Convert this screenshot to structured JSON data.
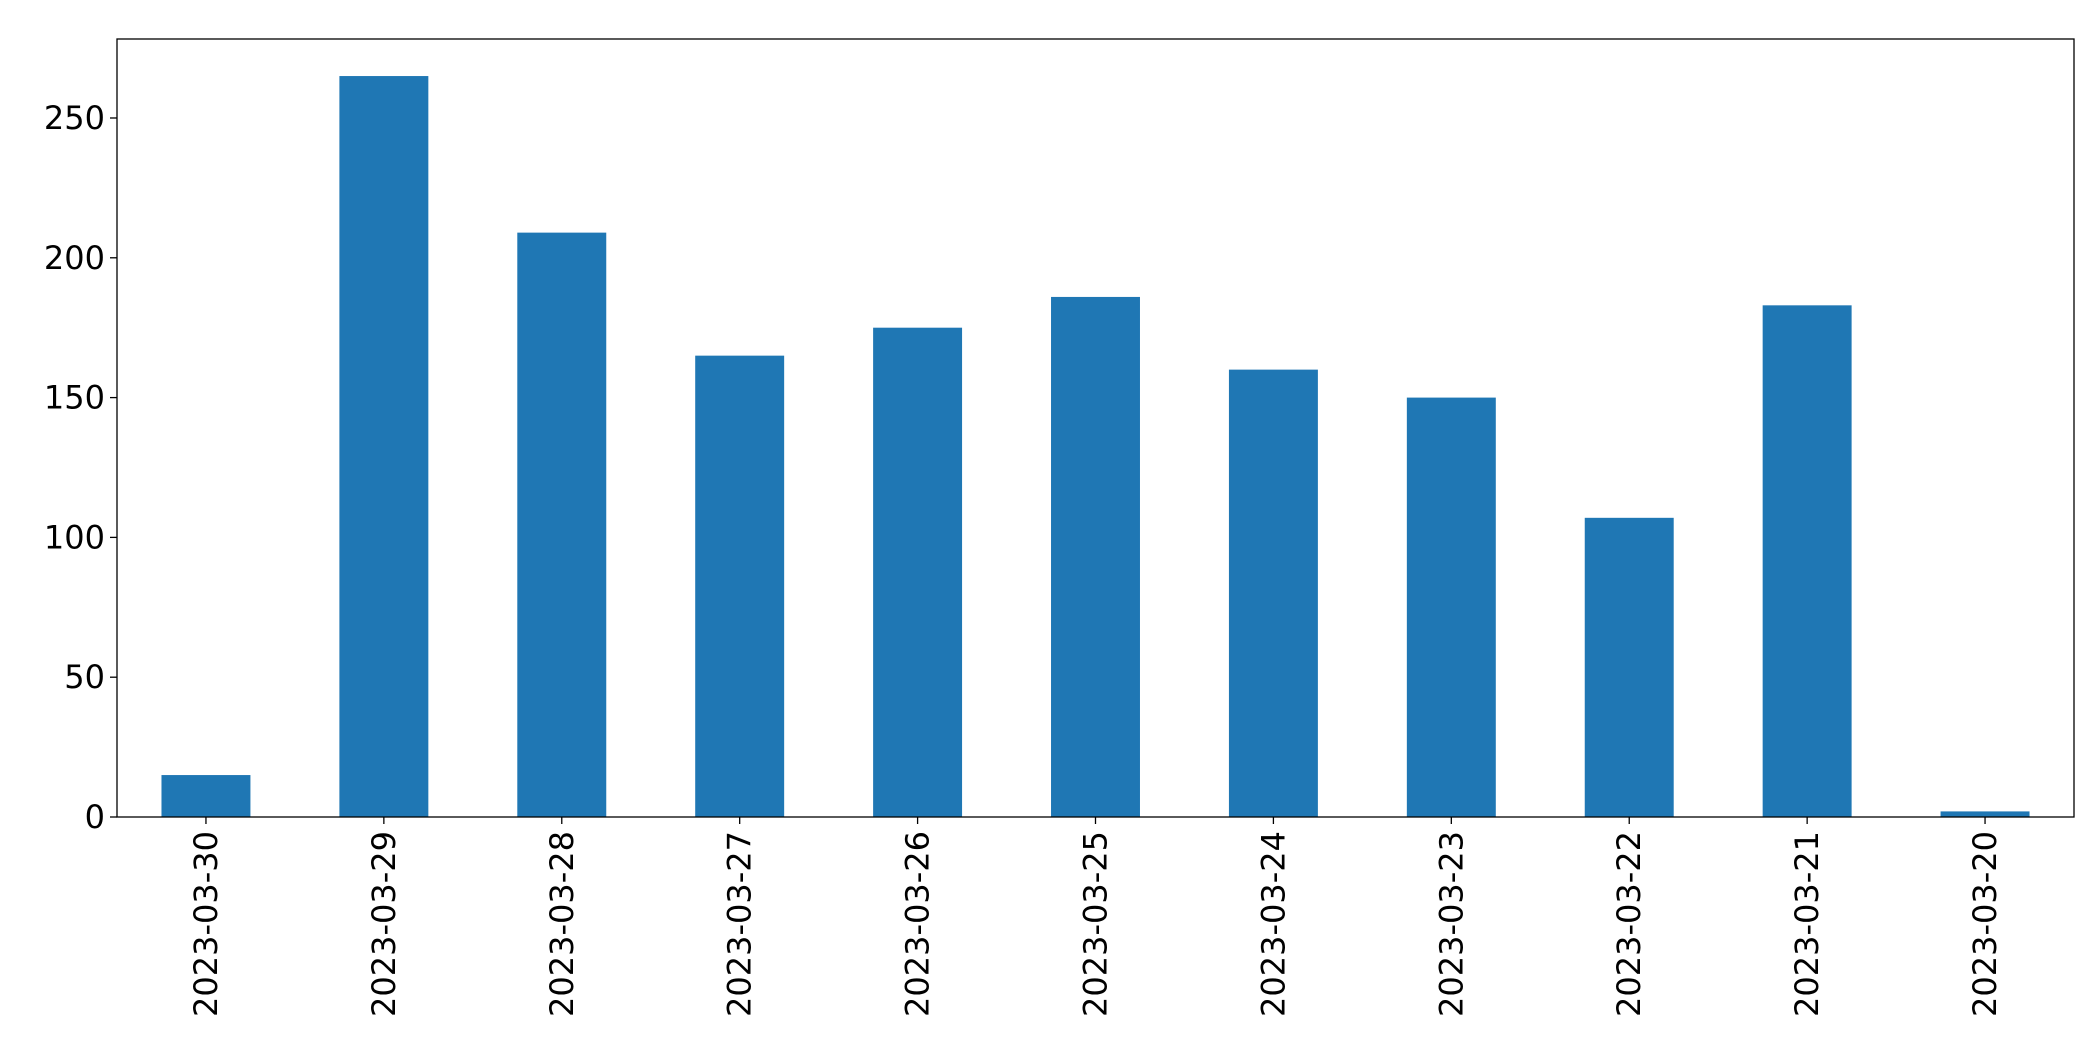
{
  "chart_data": {
    "type": "bar",
    "categories": [
      "2023-03-30",
      "2023-03-29",
      "2023-03-28",
      "2023-03-27",
      "2023-03-26",
      "2023-03-25",
      "2023-03-24",
      "2023-03-23",
      "2023-03-22",
      "2023-03-21",
      "2023-03-20"
    ],
    "values": [
      15,
      265,
      209,
      165,
      175,
      186,
      160,
      150,
      107,
      183,
      2
    ],
    "color": "#1f77b4",
    "ylim": [
      0,
      278.25
    ],
    "yticks": [
      0,
      50,
      100,
      150,
      200,
      250
    ],
    "grid": false
  }
}
